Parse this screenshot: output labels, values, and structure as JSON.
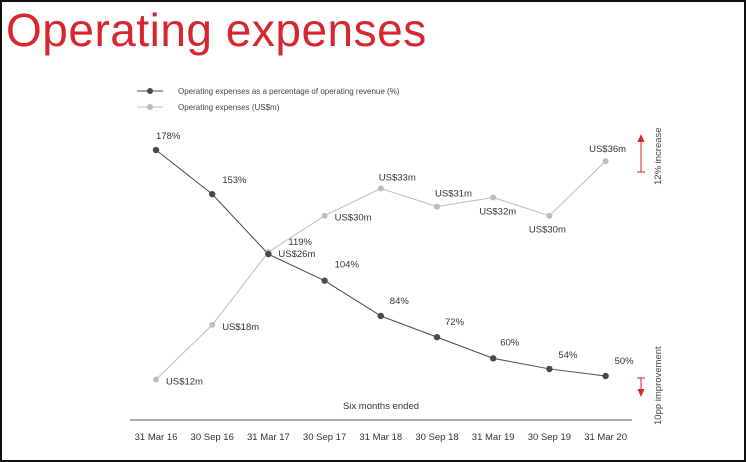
{
  "page": {
    "title": "Operating expenses"
  },
  "chart_data": {
    "type": "line",
    "categories": [
      "31 Mar 16",
      "30 Sep 16",
      "31 Mar 17",
      "30 Sep 17",
      "31 Mar 18",
      "30 Sep 18",
      "31 Mar 19",
      "30 Sep 19",
      "31 Mar 20"
    ],
    "xlabel": "Six months ended",
    "series": [
      {
        "name": "Operating expenses as a percentage of operating revenue (%)",
        "color": "#4a4a4a",
        "values": [
          178,
          153,
          119,
          104,
          84,
          72,
          60,
          54,
          50
        ],
        "labels": [
          "178%",
          "153%",
          "119%",
          "104%",
          "84%",
          "72%",
          "60%",
          "54%",
          "50%"
        ]
      },
      {
        "name": "Operating expenses (US$m)",
        "color": "#bdbdbd",
        "values": [
          12,
          18,
          26,
          30,
          33,
          31,
          32,
          30,
          36
        ],
        "labels": [
          "US$12m",
          "US$18m",
          "US$26m",
          "US$30m",
          "US$33m",
          "US$31m",
          "US$32m",
          "US$30m",
          "US$36m"
        ]
      }
    ],
    "annotations": [
      {
        "text": "12% increase",
        "color": "#d8262e"
      },
      {
        "text": "10pp improvement",
        "color": "#d8262e"
      }
    ],
    "grid": false,
    "legend_position": "top-left"
  }
}
